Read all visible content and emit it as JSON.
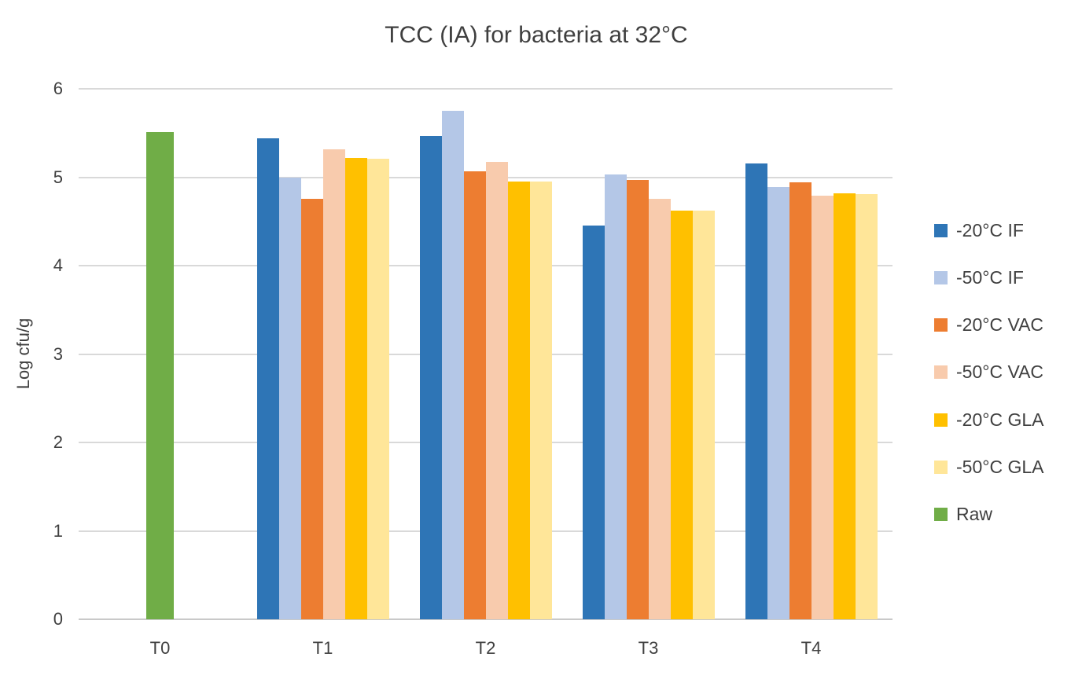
{
  "title": "TCC (IA) for bacteria at 32°C",
  "ylabel": "Log cfu/g",
  "chart_data": {
    "type": "bar",
    "title": "TCC (IA) for bacteria at 32°C",
    "xlabel": "",
    "ylabel": "Log cfu/g",
    "ylim": [
      0,
      6
    ],
    "yticks": [
      0,
      1,
      2,
      3,
      4,
      5,
      6
    ],
    "grid": true,
    "legend_position": "right",
    "categories": [
      "T0",
      "T1",
      "T2",
      "T3",
      "T4"
    ],
    "series": [
      {
        "name": "-20°C IF",
        "color": "#2e75b6",
        "values": [
          null,
          5.44,
          5.47,
          4.45,
          5.16
        ]
      },
      {
        "name": "-50°C IF",
        "color": "#b4c7e7",
        "values": [
          null,
          5.0,
          5.75,
          5.03,
          4.89
        ]
      },
      {
        "name": "-20°C VAC",
        "color": "#ed7d31",
        "values": [
          null,
          4.76,
          5.07,
          4.97,
          4.94
        ]
      },
      {
        "name": "-50°C VAC",
        "color": "#f8cbad",
        "values": [
          null,
          5.32,
          5.17,
          4.76,
          4.79
        ]
      },
      {
        "name": "-20°C GLA",
        "color": "#ffc000",
        "values": [
          null,
          5.22,
          4.95,
          4.62,
          4.82
        ]
      },
      {
        "name": "-50°C GLA",
        "color": "#ffe699",
        "values": [
          null,
          5.21,
          4.95,
          4.62,
          4.81
        ]
      },
      {
        "name": "Raw",
        "color": "#70ad47",
        "values": [
          5.51,
          null,
          null,
          null,
          null
        ]
      }
    ],
    "colors": {
      "gridline": "#d9d9d9",
      "axisline": "#c9c9c9",
      "text": "#404040"
    }
  }
}
